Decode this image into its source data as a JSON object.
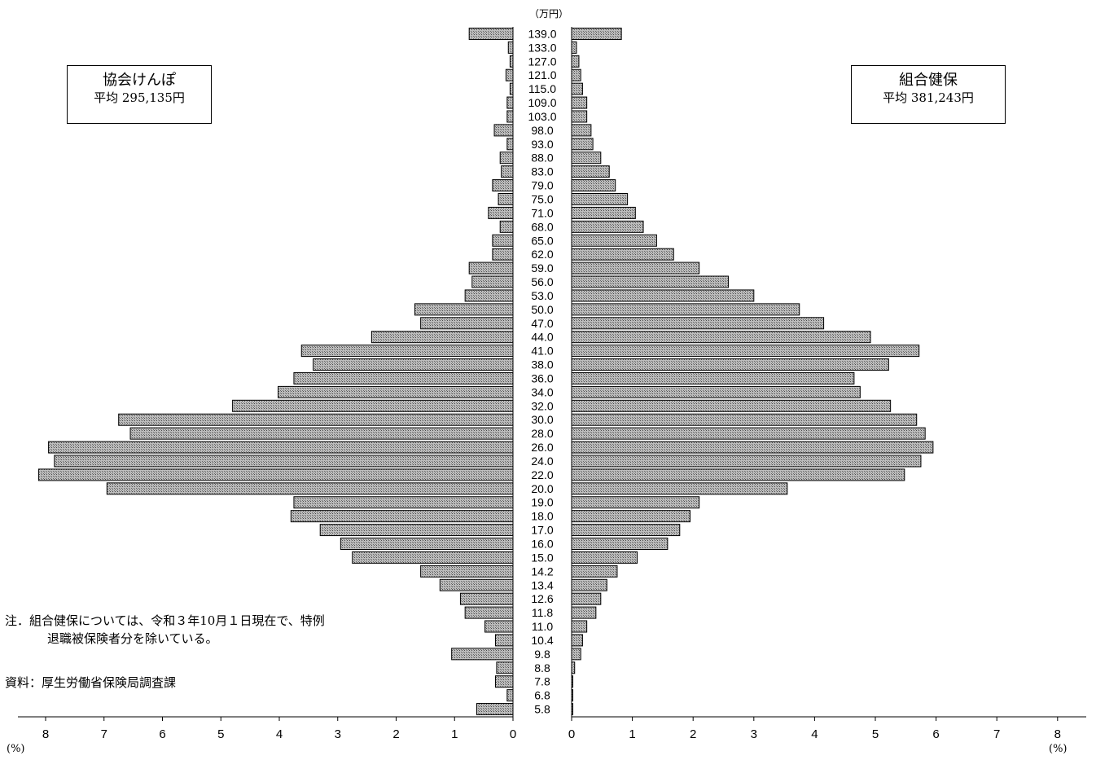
{
  "unit_label": "（万円）",
  "left_box": {
    "title": "協会けんぽ",
    "average": "平均 295,135円"
  },
  "right_box": {
    "title": "組合健保",
    "average": "平均 381,243円"
  },
  "note_line1": "注．組合健保については、令和３年10月１日現在で、特例",
  "note_line2": "退職被保険者分を除いている。",
  "source": "資料：厚生労働省保険局調査課",
  "pct_label_left": "(%)",
  "pct_label_right": "(%)",
  "colors": {
    "bar_fill": "#a6a6a6",
    "bar_stroke": "#000000"
  },
  "chart_data": {
    "type": "bar",
    "orientation": "horizontal-butterfly",
    "categories": [
      "139.0",
      "133.0",
      "127.0",
      "121.0",
      "115.0",
      "109.0",
      "103.0",
      "98.0",
      "93.0",
      "88.0",
      "83.0",
      "79.0",
      "75.0",
      "71.0",
      "68.0",
      "65.0",
      "62.0",
      "59.0",
      "56.0",
      "53.0",
      "50.0",
      "47.0",
      "44.0",
      "41.0",
      "38.0",
      "36.0",
      "34.0",
      "32.0",
      "30.0",
      "28.0",
      "26.0",
      "24.0",
      "22.0",
      "20.0",
      "19.0",
      "18.0",
      "17.0",
      "16.0",
      "15.0",
      "14.2",
      "13.4",
      "12.6",
      "11.8",
      "11.0",
      "10.4",
      "9.8",
      "8.8",
      "7.8",
      "6.8",
      "5.8"
    ],
    "series": [
      {
        "name": "協会けんぽ",
        "side": "left",
        "values": [
          0.75,
          0.08,
          0.05,
          0.12,
          0.05,
          0.1,
          0.1,
          0.32,
          0.1,
          0.22,
          0.2,
          0.35,
          0.25,
          0.42,
          0.22,
          0.35,
          0.35,
          0.75,
          0.7,
          0.82,
          1.68,
          1.58,
          2.42,
          3.62,
          3.42,
          3.75,
          4.02,
          4.8,
          6.75,
          6.55,
          7.95,
          7.85,
          8.12,
          6.95,
          3.75,
          3.8,
          3.3,
          2.95,
          2.75,
          1.58,
          1.25,
          0.9,
          0.82,
          0.48,
          0.3,
          1.05,
          0.28,
          0.3,
          0.1,
          0.62
        ]
      },
      {
        "name": "組合健保",
        "side": "right",
        "values": [
          0.82,
          0.08,
          0.12,
          0.15,
          0.18,
          0.25,
          0.25,
          0.32,
          0.35,
          0.48,
          0.62,
          0.72,
          0.92,
          1.05,
          1.18,
          1.4,
          1.68,
          2.1,
          2.58,
          3.0,
          3.75,
          4.15,
          4.92,
          5.72,
          5.22,
          4.65,
          4.75,
          5.25,
          5.68,
          5.82,
          5.95,
          5.75,
          5.48,
          3.55,
          2.1,
          1.95,
          1.78,
          1.58,
          1.08,
          0.75,
          0.58,
          0.48,
          0.4,
          0.25,
          0.18,
          0.15,
          0.05,
          0.02,
          0.02,
          0.02
        ]
      }
    ],
    "x_ticks_left": [
      "8",
      "7",
      "6",
      "5",
      "4",
      "3",
      "2",
      "1",
      "0"
    ],
    "x_ticks_right": [
      "0",
      "1",
      "2",
      "3",
      "4",
      "5",
      "6",
      "7",
      "8"
    ],
    "xlim": [
      0,
      8
    ]
  }
}
